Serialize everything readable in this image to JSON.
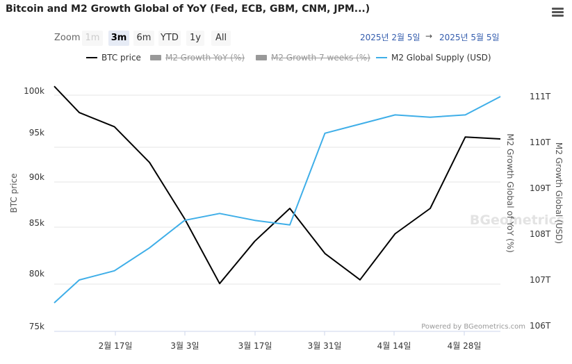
{
  "title": "Bitcoin and M2 Growth Global of YoY (Fed, ECB, GBM, CNM, JPM...)",
  "menu_icon": "hamburger-icon",
  "zoom": {
    "label": "Zoom",
    "buttons": [
      {
        "label": "1m",
        "state": "disabled"
      },
      {
        "label": "3m",
        "state": "active"
      },
      {
        "label": "6m",
        "state": "normal"
      },
      {
        "label": "YTD",
        "state": "normal"
      },
      {
        "label": "1y",
        "state": "normal"
      },
      {
        "label": "All",
        "state": "normal"
      }
    ]
  },
  "range": {
    "from": "2025년 2월 5일",
    "arrow": "→",
    "to": "2025년 5월 5일"
  },
  "legend": [
    {
      "label": "BTC price",
      "color": "#000000",
      "symbol": "line",
      "visible": true
    },
    {
      "label": "M2 Growth YoY (%)",
      "color": "#999999",
      "symbol": "rect",
      "visible": false
    },
    {
      "label": "M2 Growth 7 weeks (%)",
      "color": "#999999",
      "symbol": "rect",
      "visible": false
    },
    {
      "label": "M2 Global Supply (USD)",
      "color": "#3eaee8",
      "symbol": "line",
      "visible": true
    }
  ],
  "credits": "Powered by BGeometrics.com",
  "watermark": "BGeometrics",
  "chart_data": {
    "type": "line",
    "x_ticks": [
      "2월 17일",
      "3월 3일",
      "3월 17일",
      "3월 31일",
      "4월 14일",
      "4월 28일"
    ],
    "x_range": [
      "2025-02-05",
      "2025-05-05"
    ],
    "left_axis": {
      "label": "BTC price",
      "ticks": [
        "100k",
        "95k",
        "90k",
        "85k",
        "80k",
        "75k"
      ],
      "ylim": [
        75000,
        101000
      ]
    },
    "right_axis_1": {
      "label": "M2 Growth Global of YoY (%)"
    },
    "right_axis_2": {
      "label": "M2 Growth Global (USD)",
      "ticks": [
        "111T",
        "110T",
        "109T",
        "108T",
        "107T",
        "106T"
      ],
      "ylim": [
        106,
        111.5
      ]
    },
    "grid": true,
    "series": [
      {
        "name": "BTC price",
        "axis": "left",
        "color": "#000000",
        "points": [
          [
            "2025-02-05",
            100500
          ],
          [
            "2025-02-10",
            97700
          ],
          [
            "2025-02-17",
            96200
          ],
          [
            "2025-02-24",
            92400
          ],
          [
            "2025-03-03",
            86400
          ],
          [
            "2025-03-10",
            79500
          ],
          [
            "2025-03-17",
            84000
          ],
          [
            "2025-03-24",
            87500
          ],
          [
            "2025-03-31",
            82700
          ],
          [
            "2025-04-07",
            79900
          ],
          [
            "2025-04-14",
            84800
          ],
          [
            "2025-04-21",
            87500
          ],
          [
            "2025-04-28",
            95100
          ],
          [
            "2025-05-05",
            94900
          ]
        ]
      },
      {
        "name": "M2 Global Supply (USD)",
        "axis": "right_2",
        "color": "#3eaee8",
        "points": [
          [
            "2025-02-05",
            106.5
          ],
          [
            "2025-02-10",
            107.0
          ],
          [
            "2025-02-17",
            107.2
          ],
          [
            "2025-02-24",
            107.7
          ],
          [
            "2025-03-03",
            108.3
          ],
          [
            "2025-03-10",
            108.45
          ],
          [
            "2025-03-17",
            108.3
          ],
          [
            "2025-03-24",
            108.2
          ],
          [
            "2025-03-31",
            110.2
          ],
          [
            "2025-04-07",
            110.4
          ],
          [
            "2025-04-14",
            110.6
          ],
          [
            "2025-04-21",
            110.55
          ],
          [
            "2025-04-28",
            110.6
          ],
          [
            "2025-05-05",
            111.0
          ]
        ]
      }
    ]
  }
}
